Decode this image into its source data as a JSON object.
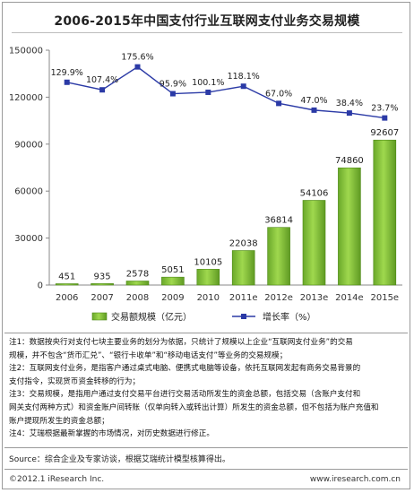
{
  "title": "2006-2015年中国支付行业互联网支付业务交易规模",
  "chart_data": {
    "type": "bar",
    "categories": [
      "2006",
      "2007",
      "2008",
      "2009",
      "2010",
      "2011e",
      "2012e",
      "2013e",
      "2014e",
      "2015e"
    ],
    "series": [
      {
        "name": "交易额规模（亿元）",
        "type": "bar",
        "values": [
          451,
          935,
          2578,
          5051,
          10105,
          22038,
          36814,
          54106,
          74860,
          92607
        ],
        "labels": [
          "451",
          "935",
          "2578",
          "5051",
          "10105",
          "22038",
          "36814",
          "54106",
          "74860",
          "92607"
        ]
      },
      {
        "name": "增长率（%）",
        "type": "line",
        "values": [
          129.9,
          107.4,
          175.6,
          95.9,
          100.1,
          118.1,
          67.0,
          47.0,
          38.4,
          23.7
        ],
        "labels": [
          "129.9%",
          "107.4%",
          "175.6%",
          "95.9%",
          "100.1%",
          "118.1%",
          "67.0%",
          "47.0%",
          "38.4%",
          "23.7%"
        ]
      }
    ],
    "yticks": [
      "150000",
      "120000",
      "90000",
      "60000",
      "30000",
      "0"
    ],
    "ylim": [
      0,
      150000
    ],
    "colors": {
      "bar": "#8cc63f",
      "bar_dark": "#4e8a17",
      "line": "#2b3aa6"
    },
    "legend_position": "bottom"
  },
  "notes": [
    "注1：数据按央行对支付七块主要业务的划分为依据，只统计了规模以上企业“互联网支付业务”的交易",
    "规模，并不包含“货币汇兑”、“银行卡收单”和“移动电话支付”等业务的交易规模；",
    "注2：互联网支付业务，是指客户通过桌式电脑、便携式电脑等设备，依托互联网发起有商务交易背景的",
    "支付指令，实现货币资金转移的行为；",
    "注3：交易规模，是指用户通过支付交易平台进行交易活动所发生的资金总额，包括交易（含账户支付和",
    "网关支付两种方式）和资金账户间转账（仅单向转入或转出计算）所发生的资金总额，但不包括为账户充值和",
    "账户提现所发生的资金总额；",
    "注4：艾瑞根据最新掌握的市场情况，对历史数据进行修正。"
  ],
  "source": "Source：综合企业及专家访谈，根据艾瑞统计模型核算得出。",
  "footer_left": "©2012.1 iResearch Inc.",
  "footer_right": "www.iresearch.com.cn"
}
